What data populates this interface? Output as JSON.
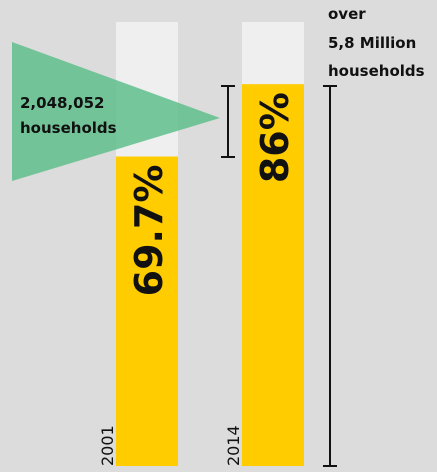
{
  "chart_data": {
    "type": "bar",
    "categories": [
      "2001",
      "2014"
    ],
    "values": [
      69.7,
      86
    ],
    "value_labels": [
      "69.7%",
      "86%"
    ],
    "ylim": [
      0,
      100
    ],
    "colors": {
      "filled": "#ffcc00",
      "remaining": "#efefef",
      "arrow": "#5fbf8c"
    },
    "annotations": {
      "difference": {
        "line1": "2,048,052",
        "line2": "households"
      },
      "total": {
        "line1": "over",
        "line2": "5,8 Million",
        "line3": "households"
      }
    }
  }
}
